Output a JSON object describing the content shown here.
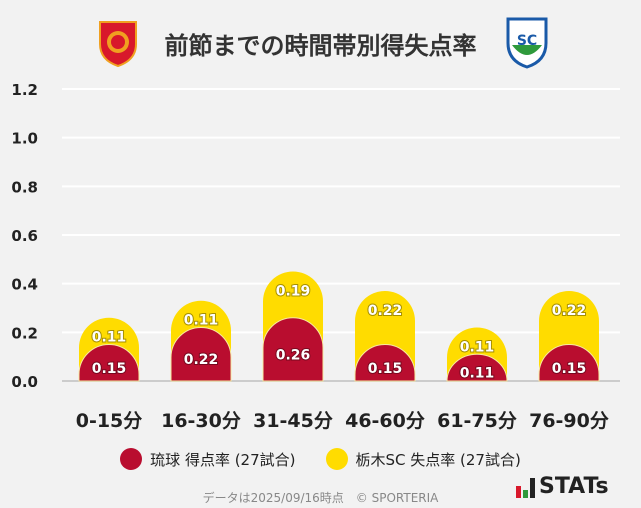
{
  "header": {
    "title": "前節までの時間帯別得失点率",
    "left_team_logo": "FC琉球 crest",
    "right_team_logo": "栃木SC crest"
  },
  "colors": {
    "ryukyu": "#b90d2f",
    "tochigi": "#ffdc00",
    "background": "#f2f2f2",
    "grid": "#ffffff"
  },
  "chart_data": {
    "type": "bar",
    "stacked": true,
    "categories": [
      "0-15分",
      "16-30分",
      "31-45分",
      "46-60分",
      "61-75分",
      "76-90分"
    ],
    "series": [
      {
        "name": "琉球 得点率 (27試合)",
        "values": [
          0.15,
          0.22,
          0.26,
          0.15,
          0.11,
          0.15
        ],
        "labels": [
          "0.15",
          "0.22",
          "0.26",
          "0.15",
          "0.11",
          "0.15"
        ]
      },
      {
        "name": "栃木SC 失点率 (27試合)",
        "values": [
          0.11,
          0.11,
          0.19,
          0.22,
          0.11,
          0.22
        ],
        "labels": [
          "0.11",
          "0.11",
          "0.19",
          "0.22",
          "0.11",
          "0.22"
        ]
      }
    ],
    "ylim": [
      0,
      1.2
    ],
    "yticks": [
      "0.0",
      "0.2",
      "0.4",
      "0.6",
      "0.8",
      "1.0",
      "1.2"
    ],
    "grid": true,
    "legend_position": "bottom"
  },
  "footer": {
    "note": "データは2025/09/16時点　© SPORTERIA",
    "brand": "STATs"
  }
}
